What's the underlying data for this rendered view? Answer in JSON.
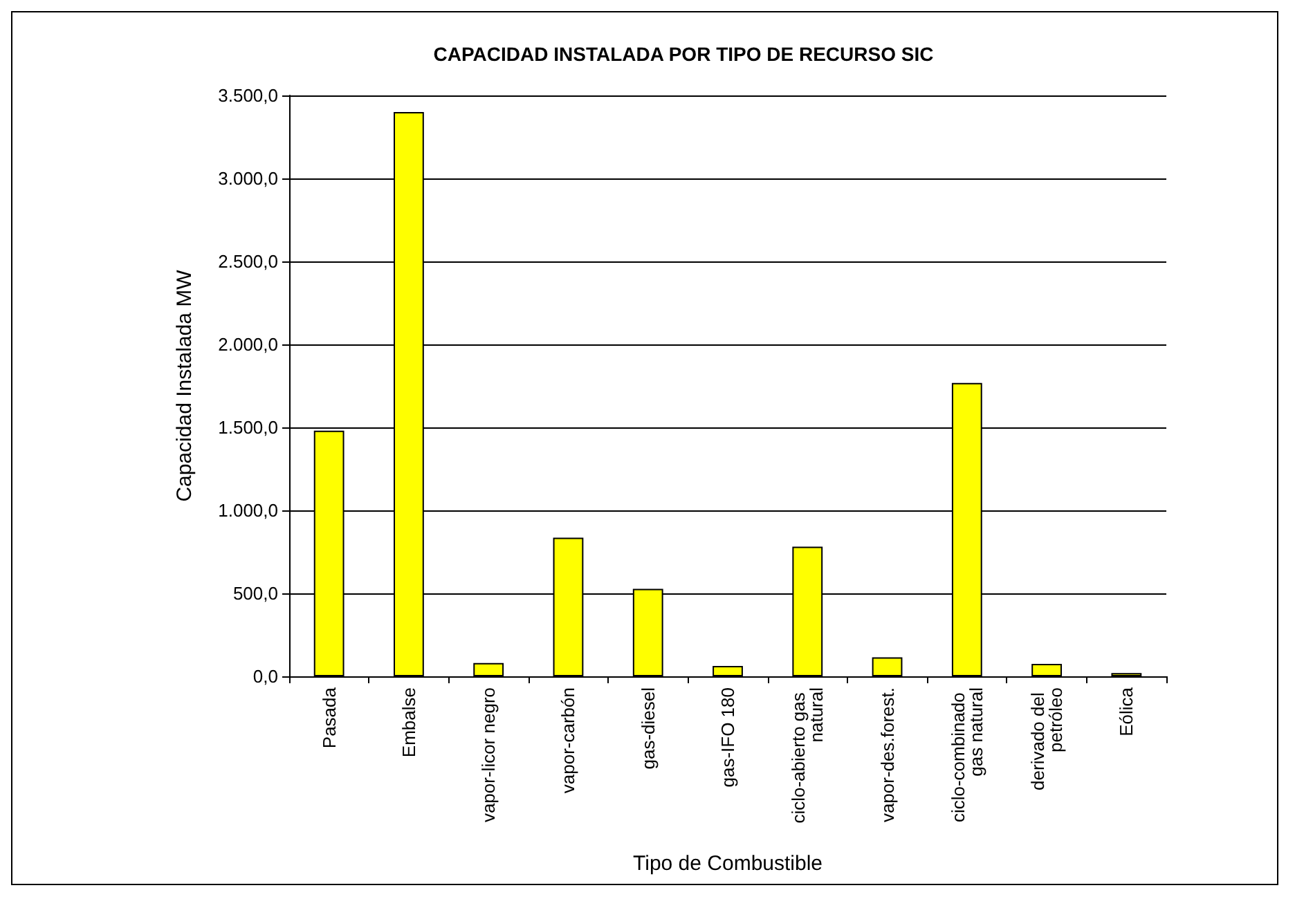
{
  "chart_data": {
    "type": "bar",
    "title": "CAPACIDAD INSTALADA POR TIPO DE RECURSO SIC",
    "xlabel": "Tipo de Combustible",
    "ylabel": "Capacidad Instalada MW",
    "categories": [
      "Pasada",
      "Embalse",
      "vapor-licor negro",
      "vapor-carbón",
      "gas-diesel",
      "gas-IFO 180",
      "ciclo-abierto gas natural",
      "vapor-des.forest.",
      "ciclo-combinado gas natural",
      "derivado del petróleo",
      "Eólica"
    ],
    "values": [
      1480,
      3400,
      80,
      835,
      527,
      63,
      781,
      115,
      1768,
      75,
      20
    ],
    "color": "#ffff00",
    "ylim": [
      0,
      3500
    ],
    "yticks": [
      {
        "value": 0,
        "label": "0,0"
      },
      {
        "value": 500,
        "label": "500,0"
      },
      {
        "value": 1000,
        "label": "1.000,0"
      },
      {
        "value": 1500,
        "label": "1.500,0"
      },
      {
        "value": 2000,
        "label": "2.000,0"
      },
      {
        "value": 2500,
        "label": "2.500,0"
      },
      {
        "value": 3000,
        "label": "3.000,0"
      },
      {
        "value": 3500,
        "label": "3.500,0"
      }
    ],
    "grid": true
  }
}
